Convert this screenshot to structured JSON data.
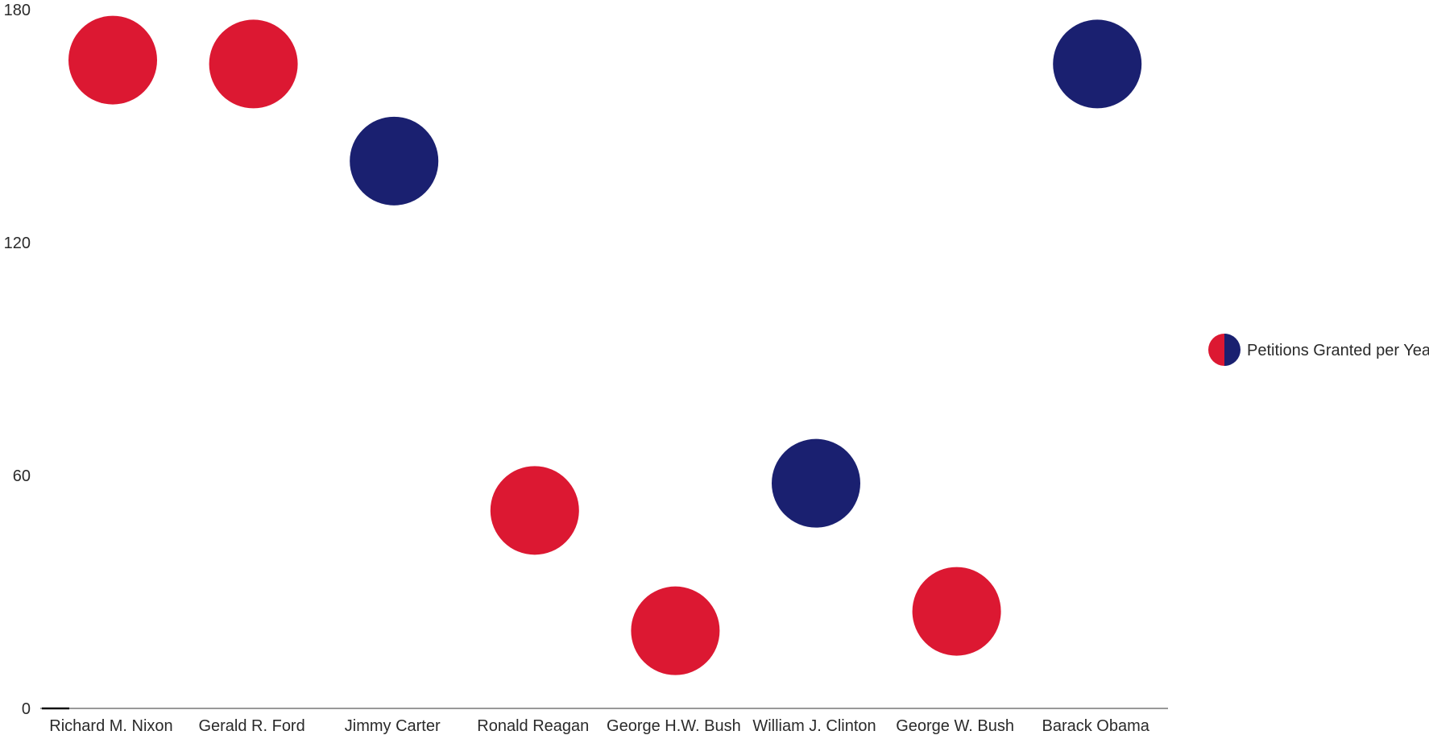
{
  "chart_data": {
    "type": "scatter",
    "title": "",
    "xlabel": "",
    "ylabel": "",
    "ylim": [
      0,
      180
    ],
    "yticks": [
      0,
      60,
      120,
      180
    ],
    "grid": false,
    "legend_position": "right",
    "colors": {
      "republican": "#DC1832",
      "democrat": "#1A2070",
      "axis": "#333333"
    },
    "categories": [
      "Richard M. Nixon",
      "Gerald R. Ford",
      "Jimmy Carter",
      "Ronald Reagan",
      "George H.W. Bush",
      "William J. Clinton",
      "George W. Bush",
      "Barack Obama"
    ],
    "series": [
      {
        "name": "Petitions Granted per Year",
        "values": [
          167,
          166,
          141,
          51,
          20,
          58,
          25,
          166
        ],
        "party": [
          "republican",
          "republican",
          "democrat",
          "republican",
          "republican",
          "democrat",
          "republican",
          "democrat"
        ]
      }
    ]
  }
}
